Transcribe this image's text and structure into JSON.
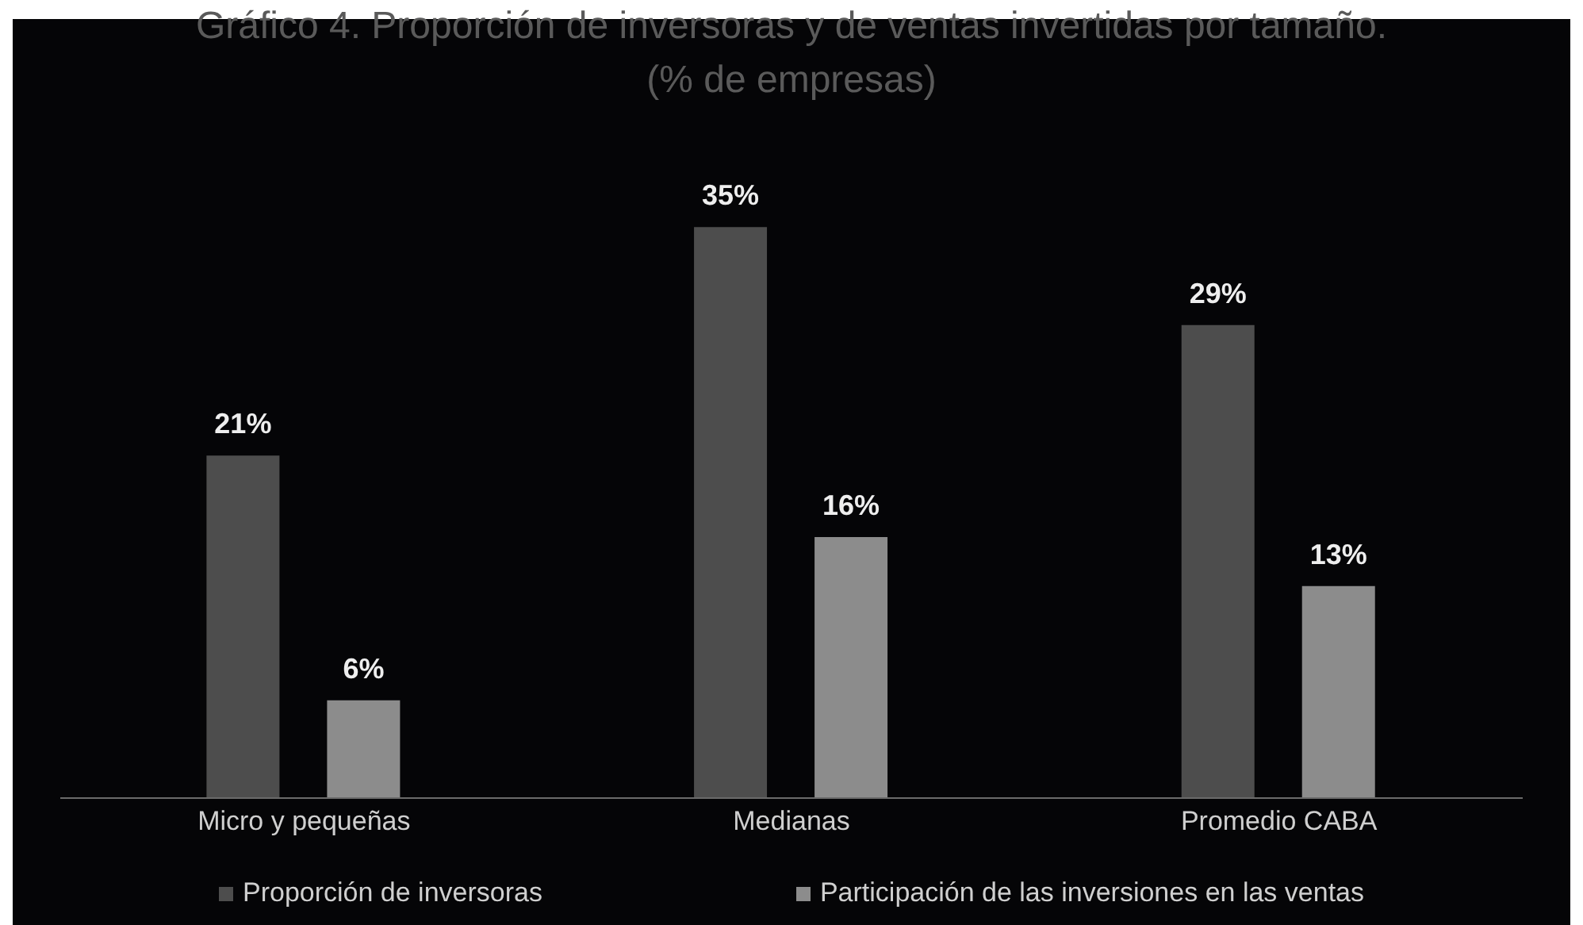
{
  "chart_data": {
    "type": "bar",
    "title": "Gráfico 4. Proporción de inversoras y de ventas invertidas por tamaño.",
    "subtitle": "(% de empresas)",
    "categories": [
      "Micro y pequeñas",
      "Medianas",
      "Promedio CABA"
    ],
    "series": [
      {
        "name": "Proporción de inversoras",
        "color": "#4d4d4d",
        "values": [
          21,
          35,
          29
        ],
        "value_labels": [
          "21%",
          "35%",
          "29%"
        ]
      },
      {
        "name": "Participación de las inversiones en las ventas",
        "color": "#8c8c8c",
        "values": [
          6,
          16,
          13
        ],
        "value_labels": [
          "6%",
          "16%",
          "13%"
        ]
      }
    ],
    "legend": "bottom"
  }
}
